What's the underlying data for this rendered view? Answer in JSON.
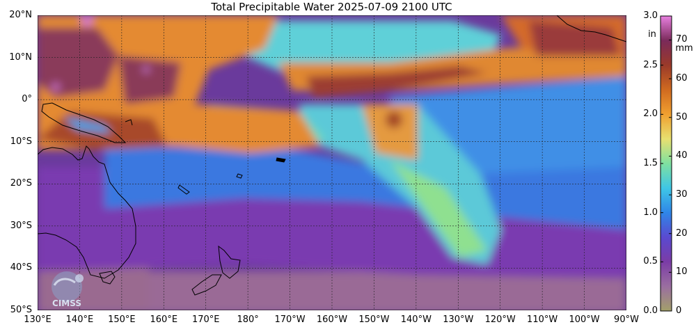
{
  "header": {
    "title": "Total Precipitable Water  2025-07-09 2100 UTC"
  },
  "map": {
    "lon_range": [
      130,
      270
    ],
    "lat_range": [
      -50,
      20
    ],
    "lat_labels": [
      "20°N",
      "10°N",
      "0°",
      "10°S",
      "20°S",
      "30°S",
      "40°S",
      "50°S"
    ],
    "lon_labels": [
      "130°E",
      "140°E",
      "150°E",
      "160°E",
      "170°E",
      "180°",
      "170°W",
      "160°W",
      "150°W",
      "140°W",
      "130°W",
      "120°W",
      "110°W",
      "100°W",
      "90°W"
    ]
  },
  "colorbar": {
    "left_unit_line1": "in",
    "right_unit_line1": "mm",
    "in_ticks": [
      "0.0",
      "0.5",
      "1.0",
      "1.5",
      "2.0",
      "2.5",
      "3.0"
    ],
    "in_values": [
      0,
      0.5,
      1.0,
      1.5,
      2.0,
      2.5,
      3.0
    ],
    "mm_ticks": [
      "0",
      "10",
      "20",
      "30",
      "40",
      "50",
      "60",
      "70"
    ],
    "mm_values": [
      0,
      10,
      20,
      30,
      40,
      50,
      60,
      70
    ],
    "max_mm": 76.2,
    "colors": [
      "#a3a06a",
      "#9a6ea0",
      "#7b3ca6",
      "#5a4ad0",
      "#2f86e8",
      "#3fc7e6",
      "#7fe0a0",
      "#e8e070",
      "#f0a030",
      "#d06a20",
      "#9a3a2a",
      "#7a2a5a",
      "#e880e0"
    ]
  },
  "logo": {
    "text": "CIMSS"
  }
}
